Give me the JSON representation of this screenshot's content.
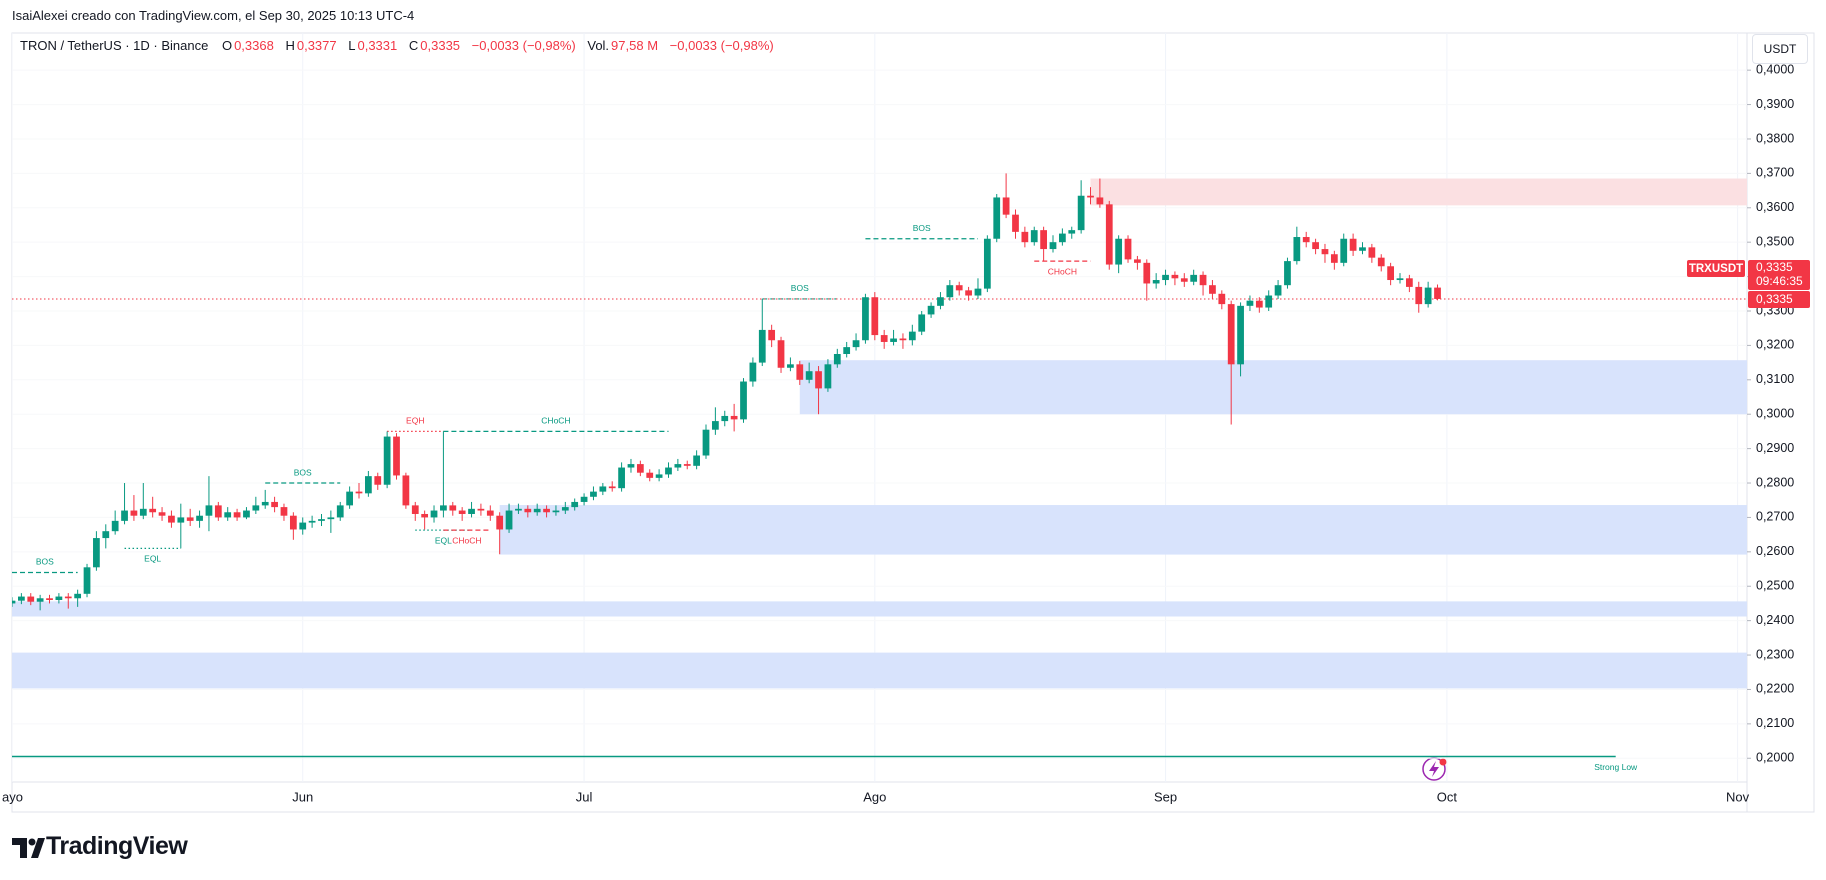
{
  "header": {
    "credit": "IsaiAlexei creado con TradingView.com, el Sep 30, 2025 10:13 UTC-4"
  },
  "footer": {
    "brand": "TradingView"
  },
  "chart_data": {
    "type": "candlestick",
    "title": "TRON / TetherUS · 1D · Binance",
    "legend": {
      "o_label": "O",
      "o": "0,3368",
      "h_label": "H",
      "h": "0,3377",
      "l_label": "L",
      "l": "0,3331",
      "c_label": "C",
      "c": "0,3335",
      "change": "−0,0033 (−0,98%)",
      "vol_label": "Vol.",
      "vol": "97,58 M",
      "vol_change": "−0,0033 (−0,98%)"
    },
    "currency": "USDT",
    "symbol_tag": "TRXUSDT",
    "countdown": "09:46:35",
    "up_color": "#089981",
    "down_color": "#f23645",
    "grid": true,
    "xlim": [
      0,
      185
    ],
    "ylim": [
      0.1931,
      0.4108
    ],
    "xticks": [
      {
        "value": 0,
        "label": "ayo"
      },
      {
        "value": 31,
        "label": "Jun"
      },
      {
        "value": 61,
        "label": "Jul"
      },
      {
        "value": 92,
        "label": "Ago"
      },
      {
        "value": 123,
        "label": "Sep"
      },
      {
        "value": 153,
        "label": "Oct"
      },
      {
        "value": 184,
        "label": "Nov"
      }
    ],
    "yticks": [
      {
        "value": 0.2,
        "label": "0,2000"
      },
      {
        "value": 0.21,
        "label": "0,2100"
      },
      {
        "value": 0.22,
        "label": "0,2200"
      },
      {
        "value": 0.23,
        "label": "0,2300"
      },
      {
        "value": 0.24,
        "label": "0,2400"
      },
      {
        "value": 0.25,
        "label": "0,2500"
      },
      {
        "value": 0.26,
        "label": "0,2600"
      },
      {
        "value": 0.27,
        "label": "0,2700"
      },
      {
        "value": 0.28,
        "label": "0,2800"
      },
      {
        "value": 0.29,
        "label": "0,2900"
      },
      {
        "value": 0.3,
        "label": "0,3000"
      },
      {
        "value": 0.31,
        "label": "0,3100"
      },
      {
        "value": 0.32,
        "label": "0,3200"
      },
      {
        "value": 0.33,
        "label": "0,3300"
      },
      {
        "value": 0.34,
        "label": "0,3400"
      },
      {
        "value": 0.35,
        "label": "0,3500"
      },
      {
        "value": 0.36,
        "label": "0,3600"
      },
      {
        "value": 0.37,
        "label": "0,3700"
      },
      {
        "value": 0.38,
        "label": "0,3800"
      },
      {
        "value": 0.39,
        "label": "0,3900"
      },
      {
        "value": 0.4,
        "label": "0,4000"
      }
    ],
    "last_price": {
      "value": 0.3335,
      "label": "0,3335"
    },
    "zones": [
      {
        "from": 115,
        "low": 0.3607,
        "high": 0.3685,
        "color": "#fbe0e2"
      },
      {
        "from": 84,
        "low": 0.3,
        "high": 0.3157,
        "color": "#d8e3fc"
      },
      {
        "from": 52,
        "low": 0.2592,
        "high": 0.2736,
        "color": "#d8e3fc"
      },
      {
        "from": 0,
        "low": 0.2412,
        "high": 0.2456,
        "color": "#d8e3fc"
      },
      {
        "from": 0,
        "low": 0.2203,
        "high": 0.2307,
        "color": "#d8e3fc"
      }
    ],
    "levels": [
      {
        "label": "BOS",
        "value": 0.254,
        "from": 0,
        "to": 7,
        "color": "#089981",
        "style": "dashed",
        "position": "above"
      },
      {
        "label": "EQL",
        "value": 0.261,
        "from": 12,
        "to": 18,
        "color": "#089981",
        "style": "dotted",
        "position": "below"
      },
      {
        "label": "BOS",
        "value": 0.28,
        "from": 27,
        "to": 35,
        "color": "#089981",
        "style": "dashed",
        "position": "above"
      },
      {
        "label": "EQH",
        "value": 0.295,
        "from": 40,
        "to": 46,
        "color": "#f23645",
        "style": "dotted",
        "position": "above"
      },
      {
        "label": "CHoCH",
        "value": 0.295,
        "from": 46,
        "to": 70,
        "color": "#089981",
        "style": "dashed",
        "position": "above"
      },
      {
        "label": "EQL",
        "value": 0.2663,
        "from": 43,
        "to": 49,
        "color": "#089981",
        "style": "dotted",
        "position": "below"
      },
      {
        "label": "CHoCH",
        "value": 0.2663,
        "from": 46,
        "to": 51,
        "color": "#f23645",
        "style": "dashed",
        "position": "below"
      },
      {
        "label": "BOS",
        "value": 0.3335,
        "from": 80,
        "to": 88,
        "color": "#089981",
        "style": "dashed",
        "position": "above"
      },
      {
        "label": "BOS",
        "value": 0.351,
        "from": 91,
        "to": 103,
        "color": "#089981",
        "style": "dashed",
        "position": "above"
      },
      {
        "label": "CHoCH",
        "value": 0.3445,
        "from": 109,
        "to": 115,
        "color": "#f23645",
        "style": "dashed",
        "position": "below"
      },
      {
        "label": "Strong Low",
        "value": 0.2005,
        "from": 0,
        "to": 171,
        "color": "#089981",
        "style": "solid",
        "position": "below-end"
      }
    ],
    "ohlc": [
      [
        0.245,
        0.2468,
        0.244,
        0.2458
      ],
      [
        0.2458,
        0.248,
        0.2448,
        0.247
      ],
      [
        0.247,
        0.248,
        0.2445,
        0.2455
      ],
      [
        0.2455,
        0.2475,
        0.243,
        0.2465
      ],
      [
        0.2465,
        0.2475,
        0.245,
        0.246
      ],
      [
        0.246,
        0.248,
        0.245,
        0.247
      ],
      [
        0.247,
        0.248,
        0.2435,
        0.2465
      ],
      [
        0.2465,
        0.249,
        0.244,
        0.2478
      ],
      [
        0.2478,
        0.2565,
        0.2468,
        0.2555
      ],
      [
        0.2555,
        0.266,
        0.2545,
        0.264
      ],
      [
        0.264,
        0.268,
        0.261,
        0.266
      ],
      [
        0.266,
        0.272,
        0.265,
        0.269
      ],
      [
        0.269,
        0.28,
        0.268,
        0.272
      ],
      [
        0.272,
        0.2765,
        0.269,
        0.2705
      ],
      [
        0.2705,
        0.28,
        0.2695,
        0.2725
      ],
      [
        0.2725,
        0.276,
        0.27,
        0.2715
      ],
      [
        0.2715,
        0.273,
        0.269,
        0.2705
      ],
      [
        0.2705,
        0.272,
        0.267,
        0.2685
      ],
      [
        0.2685,
        0.274,
        0.261,
        0.27
      ],
      [
        0.27,
        0.2725,
        0.2675,
        0.269
      ],
      [
        0.269,
        0.272,
        0.267,
        0.2705
      ],
      [
        0.2705,
        0.282,
        0.266,
        0.2735
      ],
      [
        0.2735,
        0.2745,
        0.269,
        0.27
      ],
      [
        0.27,
        0.273,
        0.269,
        0.2715
      ],
      [
        0.2715,
        0.2725,
        0.269,
        0.27
      ],
      [
        0.27,
        0.273,
        0.2695,
        0.272
      ],
      [
        0.272,
        0.276,
        0.271,
        0.2735
      ],
      [
        0.2735,
        0.278,
        0.2725,
        0.2745
      ],
      [
        0.2745,
        0.276,
        0.2715,
        0.273
      ],
      [
        0.273,
        0.274,
        0.269,
        0.2705
      ],
      [
        0.2705,
        0.2715,
        0.2635,
        0.2665
      ],
      [
        0.2665,
        0.27,
        0.265,
        0.2685
      ],
      [
        0.2685,
        0.2705,
        0.267,
        0.269
      ],
      [
        0.269,
        0.271,
        0.2675,
        0.2695
      ],
      [
        0.2695,
        0.272,
        0.2655,
        0.27
      ],
      [
        0.27,
        0.2745,
        0.269,
        0.2735
      ],
      [
        0.2735,
        0.279,
        0.2725,
        0.2775
      ],
      [
        0.2775,
        0.28,
        0.2755,
        0.277
      ],
      [
        0.277,
        0.2835,
        0.276,
        0.282
      ],
      [
        0.282,
        0.283,
        0.278,
        0.2795
      ],
      [
        0.2795,
        0.295,
        0.2785,
        0.2935
      ],
      [
        0.2935,
        0.2945,
        0.281,
        0.2822
      ],
      [
        0.2822,
        0.283,
        0.2725,
        0.2735
      ],
      [
        0.2735,
        0.2745,
        0.269,
        0.271
      ],
      [
        0.271,
        0.272,
        0.2665,
        0.27
      ],
      [
        0.27,
        0.2735,
        0.2685,
        0.272
      ],
      [
        0.272,
        0.295,
        0.27,
        0.2735
      ],
      [
        0.2735,
        0.2745,
        0.2705,
        0.272
      ],
      [
        0.272,
        0.273,
        0.269,
        0.271
      ],
      [
        0.271,
        0.2745,
        0.27,
        0.2725
      ],
      [
        0.2725,
        0.274,
        0.2705,
        0.272
      ],
      [
        0.272,
        0.2735,
        0.269,
        0.2705
      ],
      [
        0.2705,
        0.2715,
        0.2593,
        0.2665
      ],
      [
        0.2665,
        0.274,
        0.2655,
        0.272
      ],
      [
        0.272,
        0.274,
        0.271,
        0.2725
      ],
      [
        0.2725,
        0.2735,
        0.27,
        0.2715
      ],
      [
        0.2715,
        0.274,
        0.2705,
        0.2725
      ],
      [
        0.2725,
        0.2735,
        0.27,
        0.2715
      ],
      [
        0.2715,
        0.2735,
        0.2705,
        0.272
      ],
      [
        0.272,
        0.2745,
        0.271,
        0.273
      ],
      [
        0.273,
        0.2755,
        0.272,
        0.2745
      ],
      [
        0.2745,
        0.277,
        0.2735,
        0.276
      ],
      [
        0.276,
        0.279,
        0.275,
        0.2775
      ],
      [
        0.2775,
        0.28,
        0.2765,
        0.279
      ],
      [
        0.279,
        0.2805,
        0.2775,
        0.2785
      ],
      [
        0.2785,
        0.286,
        0.2775,
        0.2845
      ],
      [
        0.2845,
        0.287,
        0.283,
        0.2855
      ],
      [
        0.2855,
        0.2865,
        0.282,
        0.283
      ],
      [
        0.283,
        0.284,
        0.2805,
        0.2815
      ],
      [
        0.2815,
        0.284,
        0.2805,
        0.2825
      ],
      [
        0.2825,
        0.286,
        0.2815,
        0.2845
      ],
      [
        0.2845,
        0.287,
        0.2835,
        0.2855
      ],
      [
        0.2855,
        0.2865,
        0.284,
        0.285
      ],
      [
        0.285,
        0.2895,
        0.284,
        0.288
      ],
      [
        0.288,
        0.297,
        0.287,
        0.2955
      ],
      [
        0.2955,
        0.302,
        0.294,
        0.298
      ],
      [
        0.298,
        0.301,
        0.2965,
        0.2995
      ],
      [
        0.2995,
        0.303,
        0.295,
        0.2985
      ],
      [
        0.2985,
        0.3105,
        0.2975,
        0.3095
      ],
      [
        0.3095,
        0.3165,
        0.308,
        0.315
      ],
      [
        0.315,
        0.3335,
        0.314,
        0.3245
      ],
      [
        0.3245,
        0.326,
        0.3195,
        0.3215
      ],
      [
        0.3215,
        0.3225,
        0.312,
        0.3135
      ],
      [
        0.3135,
        0.3165,
        0.3125,
        0.3145
      ],
      [
        0.3145,
        0.3155,
        0.3085,
        0.31
      ],
      [
        0.31,
        0.315,
        0.309,
        0.3125
      ],
      [
        0.3125,
        0.314,
        0.3,
        0.3075
      ],
      [
        0.3075,
        0.316,
        0.3065,
        0.3145
      ],
      [
        0.3145,
        0.319,
        0.3135,
        0.3175
      ],
      [
        0.3175,
        0.321,
        0.3165,
        0.3195
      ],
      [
        0.3195,
        0.3235,
        0.3185,
        0.3215
      ],
      [
        0.3215,
        0.335,
        0.3205,
        0.334
      ],
      [
        0.334,
        0.3355,
        0.3215,
        0.323
      ],
      [
        0.323,
        0.3245,
        0.319,
        0.321
      ],
      [
        0.321,
        0.3245,
        0.32,
        0.322
      ],
      [
        0.322,
        0.3235,
        0.319,
        0.3215
      ],
      [
        0.3215,
        0.326,
        0.32,
        0.324
      ],
      [
        0.324,
        0.33,
        0.323,
        0.329
      ],
      [
        0.329,
        0.3325,
        0.328,
        0.3315
      ],
      [
        0.3315,
        0.3355,
        0.3305,
        0.334
      ],
      [
        0.334,
        0.339,
        0.333,
        0.3375
      ],
      [
        0.3375,
        0.3385,
        0.3345,
        0.336
      ],
      [
        0.336,
        0.337,
        0.333,
        0.3345
      ],
      [
        0.3345,
        0.3395,
        0.3335,
        0.3365
      ],
      [
        0.3365,
        0.352,
        0.3355,
        0.351
      ],
      [
        0.351,
        0.364,
        0.35,
        0.363
      ],
      [
        0.363,
        0.37,
        0.357,
        0.358
      ],
      [
        0.358,
        0.3595,
        0.351,
        0.353
      ],
      [
        0.353,
        0.3545,
        0.3485,
        0.35
      ],
      [
        0.35,
        0.3545,
        0.349,
        0.3535
      ],
      [
        0.3535,
        0.3545,
        0.3445,
        0.348
      ],
      [
        0.348,
        0.352,
        0.347,
        0.35
      ],
      [
        0.35,
        0.354,
        0.349,
        0.3525
      ],
      [
        0.3525,
        0.3545,
        0.351,
        0.3535
      ],
      [
        0.3535,
        0.368,
        0.3525,
        0.3635
      ],
      [
        0.3635,
        0.366,
        0.361,
        0.363
      ],
      [
        0.363,
        0.3685,
        0.36,
        0.361
      ],
      [
        0.361,
        0.362,
        0.342,
        0.3435
      ],
      [
        0.3435,
        0.352,
        0.341,
        0.351
      ],
      [
        0.351,
        0.352,
        0.344,
        0.345
      ],
      [
        0.345,
        0.346,
        0.342,
        0.344
      ],
      [
        0.344,
        0.345,
        0.333,
        0.338
      ],
      [
        0.338,
        0.341,
        0.3365,
        0.339
      ],
      [
        0.339,
        0.342,
        0.3375,
        0.3405
      ],
      [
        0.3405,
        0.3415,
        0.3375,
        0.3395
      ],
      [
        0.3395,
        0.341,
        0.337,
        0.3385
      ],
      [
        0.3385,
        0.342,
        0.3375,
        0.3405
      ],
      [
        0.3405,
        0.3415,
        0.3345,
        0.3375
      ],
      [
        0.3375,
        0.339,
        0.3335,
        0.335
      ],
      [
        0.335,
        0.336,
        0.3305,
        0.332
      ],
      [
        0.332,
        0.333,
        0.297,
        0.3145
      ],
      [
        0.3145,
        0.3325,
        0.311,
        0.3315
      ],
      [
        0.3315,
        0.3345,
        0.33,
        0.333
      ],
      [
        0.333,
        0.334,
        0.3295,
        0.331
      ],
      [
        0.331,
        0.336,
        0.33,
        0.3345
      ],
      [
        0.3345,
        0.339,
        0.3335,
        0.3375
      ],
      [
        0.3375,
        0.3455,
        0.3365,
        0.3445
      ],
      [
        0.3445,
        0.3545,
        0.3435,
        0.3515
      ],
      [
        0.3515,
        0.353,
        0.3485,
        0.35
      ],
      [
        0.35,
        0.351,
        0.3465,
        0.348
      ],
      [
        0.348,
        0.3495,
        0.344,
        0.3465
      ],
      [
        0.3465,
        0.3475,
        0.342,
        0.344
      ],
      [
        0.344,
        0.3525,
        0.343,
        0.351
      ],
      [
        0.351,
        0.3525,
        0.346,
        0.3475
      ],
      [
        0.3475,
        0.35,
        0.3465,
        0.3485
      ],
      [
        0.3485,
        0.3495,
        0.344,
        0.3455
      ],
      [
        0.3455,
        0.3465,
        0.3415,
        0.343
      ],
      [
        0.343,
        0.344,
        0.3375,
        0.339
      ],
      [
        0.339,
        0.341,
        0.338,
        0.3395
      ],
      [
        0.3395,
        0.3405,
        0.3355,
        0.337
      ],
      [
        0.337,
        0.3385,
        0.3295,
        0.332
      ],
      [
        0.332,
        0.3385,
        0.331,
        0.3368
      ],
      [
        0.3368,
        0.3377,
        0.3331,
        0.3335
      ]
    ]
  }
}
